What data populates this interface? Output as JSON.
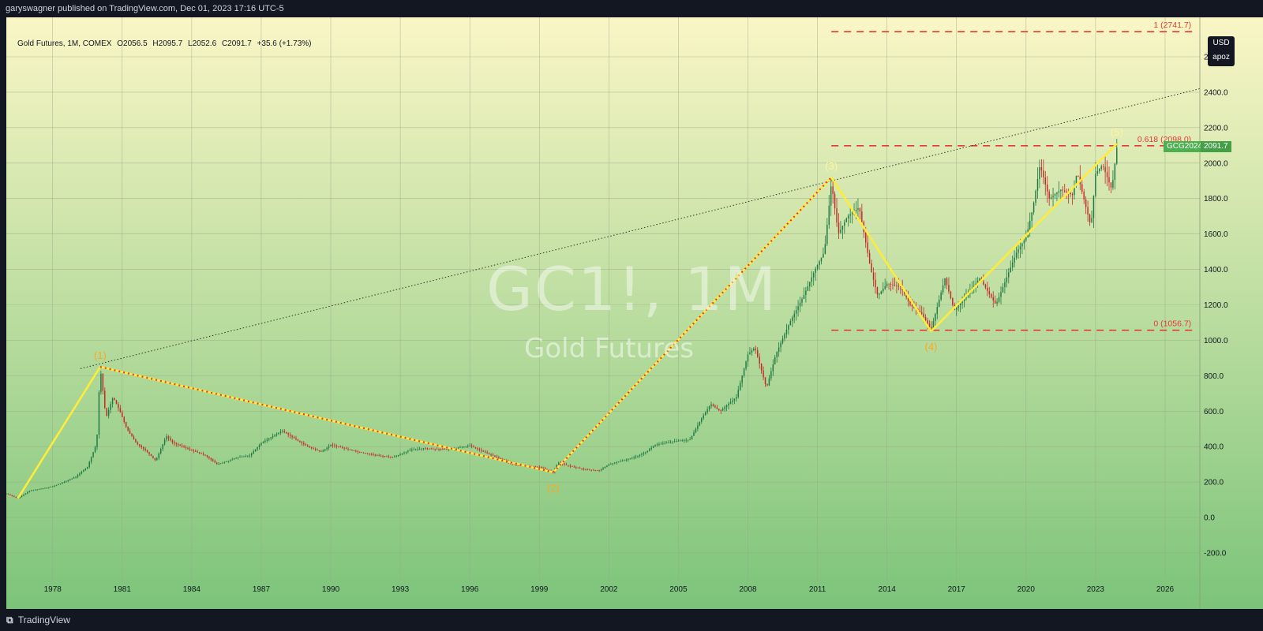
{
  "header": {
    "published": "garyswagner published on TradingView.com, Dec 01, 2023 17:16 UTC-5"
  },
  "legend": {
    "symbol": "Gold Futures, 1M, COMEX",
    "open": "O2056.5",
    "high": "H2095.7",
    "low": "L2052.6",
    "close": "C2091.7",
    "change": "+35.6 (+1.73%)"
  },
  "watermark": {
    "line1": "GC1!, 1M",
    "line2": "Gold Futures"
  },
  "unit_box": {
    "currency": "USD",
    "scale": "apoz"
  },
  "price_tag": {
    "symbol": "GCG2024",
    "value": "2091.7"
  },
  "footer": {
    "logo": "⧉",
    "brand": "TradingView"
  },
  "colors": {
    "background_top": "#faf6c6",
    "background_bottom": "#7cc47a",
    "wave_line": "#ffeb3b",
    "fib_line": "#e53935",
    "fib_label": "#e53935",
    "grid": "#9aa58a"
  },
  "chart_data": {
    "type": "candlestick",
    "x_axis": {
      "ticks": [
        "1978",
        "1981",
        "1984",
        "1987",
        "1990",
        "1993",
        "1996",
        "1999",
        "2002",
        "2005",
        "2008",
        "2011",
        "2014",
        "2017",
        "2020",
        "2023",
        "2026"
      ],
      "range": [
        1976.0,
        2027.5
      ]
    },
    "y_axis": {
      "ticks": [
        "2600.0",
        "2400.0",
        "2200.0",
        "2000.0",
        "1800.0",
        "1600.0",
        "1400.0",
        "1200.0",
        "1000.0",
        "800.0",
        "600.0",
        "400.0",
        "200.0",
        "0.0",
        "-200.0"
      ],
      "range": [
        -300,
        2780
      ]
    },
    "price_path": [
      [
        1976.0,
        135
      ],
      [
        1976.5,
        108
      ],
      [
        1977.0,
        150
      ],
      [
        1977.6,
        165
      ],
      [
        1978.0,
        175
      ],
      [
        1978.5,
        200
      ],
      [
        1979.0,
        230
      ],
      [
        1979.5,
        285
      ],
      [
        1979.9,
        420
      ],
      [
        1980.05,
        850
      ],
      [
        1980.3,
        560
      ],
      [
        1980.6,
        680
      ],
      [
        1980.9,
        600
      ],
      [
        1981.2,
        500
      ],
      [
        1981.6,
        420
      ],
      [
        1982.0,
        380
      ],
      [
        1982.45,
        320
      ],
      [
        1982.9,
        460
      ],
      [
        1983.2,
        420
      ],
      [
        1983.6,
        400
      ],
      [
        1984.0,
        380
      ],
      [
        1984.6,
        350
      ],
      [
        1985.1,
        300
      ],
      [
        1985.6,
        320
      ],
      [
        1986.0,
        340
      ],
      [
        1986.5,
        350
      ],
      [
        1987.0,
        420
      ],
      [
        1987.9,
        490
      ],
      [
        1988.5,
        440
      ],
      [
        1989.0,
        400
      ],
      [
        1989.6,
        370
      ],
      [
        1990.0,
        410
      ],
      [
        1990.6,
        390
      ],
      [
        1991.2,
        370
      ],
      [
        1992.0,
        350
      ],
      [
        1992.7,
        340
      ],
      [
        1993.4,
        380
      ],
      [
        1994.0,
        390
      ],
      [
        1995.0,
        385
      ],
      [
        1996.0,
        405
      ],
      [
        1996.8,
        360
      ],
      [
        1997.5,
        320
      ],
      [
        1998.0,
        295
      ],
      [
        1998.6,
        290
      ],
      [
        1999.0,
        285
      ],
      [
        1999.6,
        255
      ],
      [
        1999.8,
        310
      ],
      [
        2000.3,
        290
      ],
      [
        2001.0,
        270
      ],
      [
        2001.6,
        265
      ],
      [
        2002.0,
        300
      ],
      [
        2002.6,
        320
      ],
      [
        2003.1,
        340
      ],
      [
        2003.6,
        370
      ],
      [
        2004.0,
        410
      ],
      [
        2004.8,
        430
      ],
      [
        2005.5,
        440
      ],
      [
        2006.0,
        560
      ],
      [
        2006.4,
        640
      ],
      [
        2006.8,
        600
      ],
      [
        2007.5,
        680
      ],
      [
        2008.0,
        920
      ],
      [
        2008.3,
        960
      ],
      [
        2008.8,
        730
      ],
      [
        2009.2,
        920
      ],
      [
        2009.8,
        1100
      ],
      [
        2010.4,
        1250
      ],
      [
        2010.9,
        1400
      ],
      [
        2011.3,
        1500
      ],
      [
        2011.6,
        1890
      ],
      [
        2011.9,
        1600
      ],
      [
        2012.3,
        1700
      ],
      [
        2012.8,
        1750
      ],
      [
        2013.3,
        1400
      ],
      [
        2013.6,
        1250
      ],
      [
        2014.0,
        1320
      ],
      [
        2014.6,
        1300
      ],
      [
        2015.0,
        1200
      ],
      [
        2015.5,
        1150
      ],
      [
        2015.9,
        1060
      ],
      [
        2016.5,
        1350
      ],
      [
        2016.9,
        1170
      ],
      [
        2017.5,
        1260
      ],
      [
        2018.0,
        1350
      ],
      [
        2018.7,
        1200
      ],
      [
        2019.0,
        1300
      ],
      [
        2019.6,
        1500
      ],
      [
        2020.0,
        1580
      ],
      [
        2020.3,
        1750
      ],
      [
        2020.6,
        1990
      ],
      [
        2021.0,
        1800
      ],
      [
        2021.5,
        1850
      ],
      [
        2022.0,
        1820
      ],
      [
        2022.2,
        1950
      ],
      [
        2022.8,
        1640
      ],
      [
        2023.0,
        1940
      ],
      [
        2023.3,
        1990
      ],
      [
        2023.7,
        1850
      ],
      [
        2023.92,
        2092
      ]
    ],
    "wave_points": [
      {
        "label": "",
        "x": 1976.5,
        "y": 108
      },
      {
        "label": "(1)",
        "x": 1980.05,
        "y": 850
      },
      {
        "label": "(2)",
        "x": 1999.6,
        "y": 255
      },
      {
        "label": "(3)",
        "x": 2011.6,
        "y": 1920
      },
      {
        "label": "(4)",
        "x": 2015.9,
        "y": 1050
      },
      {
        "label": "(5)",
        "x": 2023.92,
        "y": 2110
      }
    ],
    "fib_levels": [
      {
        "label": "1 (2741.7)",
        "value": 2741.7
      },
      {
        "label": "0.618 (2098.0)",
        "value": 2098.0
      },
      {
        "label": "0 (1056.7)",
        "value": 1056.7
      }
    ],
    "trendline": {
      "from": {
        "x": 1979.2,
        "y": 840
      },
      "to": {
        "x": 2027.5,
        "y": 2420
      }
    },
    "last_price": 2091.7
  }
}
